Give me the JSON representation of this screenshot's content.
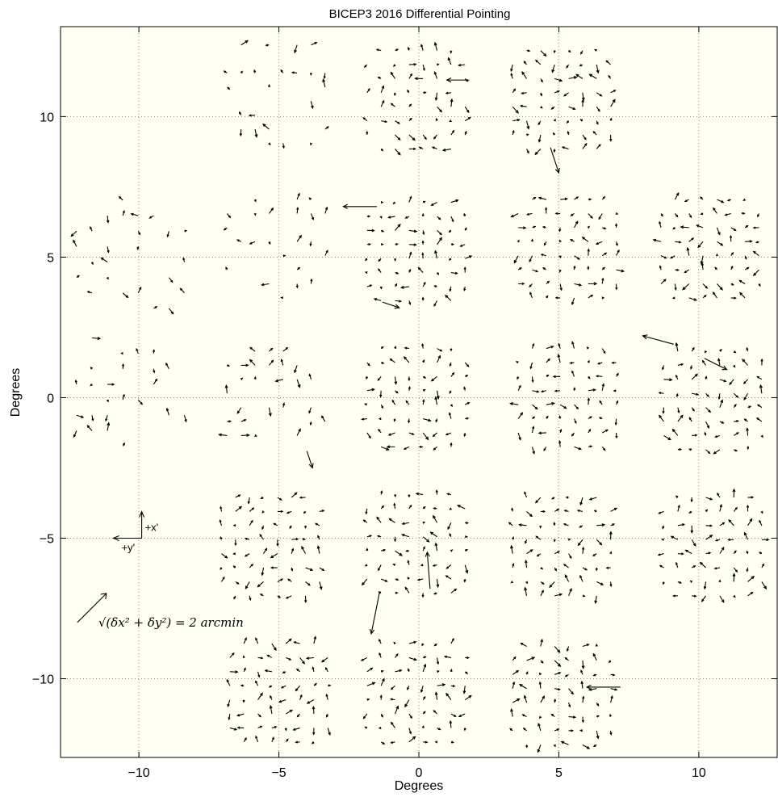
{
  "chart_data": {
    "type": "quiver",
    "title": "BICEP3 2016 Differential Pointing",
    "xlabel": "Degrees",
    "ylabel": "Degrees",
    "xlim": [
      -12.8,
      12.8
    ],
    "ylim": [
      -12.8,
      13.2
    ],
    "xticks": [
      -10,
      -5,
      0,
      5,
      10
    ],
    "yticks": [
      -10,
      -5,
      0,
      5,
      10
    ],
    "xtick_labels": [
      "−10",
      "−5",
      "0",
      "5",
      "10"
    ],
    "ytick_labels": [
      "−10",
      "−5",
      "0",
      "5",
      "10"
    ],
    "grid": true,
    "grid_style": "dotted",
    "background": "#fffff2",
    "arrow_color": "#000000",
    "arrow_scale_deg_per_arcmin": 1.1,
    "scale_legend": {
      "text_prefix": "√(δx² + δy²) = 2 arcmin",
      "length_arcmin": 2,
      "anchor": [
        -12.2,
        -8.0
      ]
    },
    "orientation_inset": {
      "x_label": "+x'",
      "y_label": "+y'",
      "anchor": [
        -9.9,
        -5.0
      ]
    },
    "tiles": [
      {
        "cx": -10.3,
        "cy": 5.1,
        "nx": 8,
        "ny": 8,
        "pitch": 0.55,
        "fill": 0.45,
        "seed": 11
      },
      {
        "cx": -5.1,
        "cy": 5.3,
        "nx": 8,
        "ny": 8,
        "pitch": 0.5,
        "fill": 0.45,
        "seed": 12
      },
      {
        "cx": -5.1,
        "cy": 10.8,
        "nx": 8,
        "ny": 8,
        "pitch": 0.5,
        "fill": 0.45,
        "seed": 13
      },
      {
        "cx": -10.3,
        "cy": 0.2,
        "nx": 8,
        "ny": 8,
        "pitch": 0.55,
        "fill": 0.45,
        "seed": 14
      },
      {
        "cx": -5.1,
        "cy": -0.1,
        "nx": 8,
        "ny": 8,
        "pitch": 0.5,
        "fill": 0.45,
        "seed": 15
      },
      {
        "cx": -0.1,
        "cy": 10.6,
        "nx": 8,
        "ny": 8,
        "pitch": 0.5,
        "fill": 0.9,
        "seed": 21
      },
      {
        "cx": -0.1,
        "cy": 5.2,
        "nx": 8,
        "ny": 8,
        "pitch": 0.5,
        "fill": 1.0,
        "seed": 22
      },
      {
        "cx": -0.1,
        "cy": 0.0,
        "nx": 8,
        "ny": 8,
        "pitch": 0.5,
        "fill": 1.0,
        "seed": 23
      },
      {
        "cx": -0.1,
        "cy": -5.2,
        "nx": 8,
        "ny": 8,
        "pitch": 0.5,
        "fill": 1.0,
        "seed": 24
      },
      {
        "cx": -0.1,
        "cy": -10.5,
        "nx": 8,
        "ny": 8,
        "pitch": 0.5,
        "fill": 1.0,
        "seed": 25
      },
      {
        "cx": 5.1,
        "cy": 10.6,
        "nx": 8,
        "ny": 8,
        "pitch": 0.5,
        "fill": 1.0,
        "seed": 31
      },
      {
        "cx": 5.3,
        "cy": 5.3,
        "nx": 8,
        "ny": 8,
        "pitch": 0.5,
        "fill": 1.0,
        "seed": 32
      },
      {
        "cx": 5.3,
        "cy": 0.0,
        "nx": 8,
        "ny": 8,
        "pitch": 0.5,
        "fill": 1.0,
        "seed": 33
      },
      {
        "cx": 5.1,
        "cy": -5.3,
        "nx": 8,
        "ny": 8,
        "pitch": 0.5,
        "fill": 1.0,
        "seed": 34
      },
      {
        "cx": 5.1,
        "cy": -10.6,
        "nx": 8,
        "ny": 8,
        "pitch": 0.5,
        "fill": 1.0,
        "seed": 35
      },
      {
        "cx": -5.3,
        "cy": -5.3,
        "nx": 8,
        "ny": 8,
        "pitch": 0.5,
        "fill": 1.0,
        "seed": 41
      },
      {
        "cx": -5.0,
        "cy": -10.5,
        "nx": 8,
        "ny": 8,
        "pitch": 0.5,
        "fill": 1.0,
        "seed": 42
      },
      {
        "cx": 10.4,
        "cy": 5.3,
        "nx": 8,
        "ny": 8,
        "pitch": 0.5,
        "fill": 1.0,
        "seed": 51
      },
      {
        "cx": 10.5,
        "cy": -0.1,
        "nx": 8,
        "ny": 8,
        "pitch": 0.5,
        "fill": 1.0,
        "seed": 52
      },
      {
        "cx": 10.5,
        "cy": -5.3,
        "nx": 8,
        "ny": 8,
        "pitch": 0.5,
        "fill": 1.0,
        "seed": 53
      }
    ],
    "large_vectors": [
      {
        "x": -1.5,
        "y": 6.8,
        "dx": -1.2,
        "dy": 0.0
      },
      {
        "x": -1.3,
        "y": 3.4,
        "dx": 0.6,
        "dy": -0.2
      },
      {
        "x": 9.1,
        "y": 1.9,
        "dx": -1.1,
        "dy": 0.3
      },
      {
        "x": 10.2,
        "y": 1.4,
        "dx": 0.8,
        "dy": -0.4
      },
      {
        "x": 4.7,
        "y": 8.9,
        "dx": 0.3,
        "dy": -0.9
      },
      {
        "x": 7.2,
        "y": -10.3,
        "dx": -1.2,
        "dy": 0.0
      },
      {
        "x": -1.4,
        "y": -6.9,
        "dx": -0.3,
        "dy": -1.5
      },
      {
        "x": 0.4,
        "y": -6.8,
        "dx": -0.1,
        "dy": 1.3
      },
      {
        "x": -4.0,
        "y": -1.9,
        "dx": 0.2,
        "dy": -0.6
      },
      {
        "x": 1.8,
        "y": 11.3,
        "dx": -0.8,
        "dy": 0.0
      }
    ]
  }
}
